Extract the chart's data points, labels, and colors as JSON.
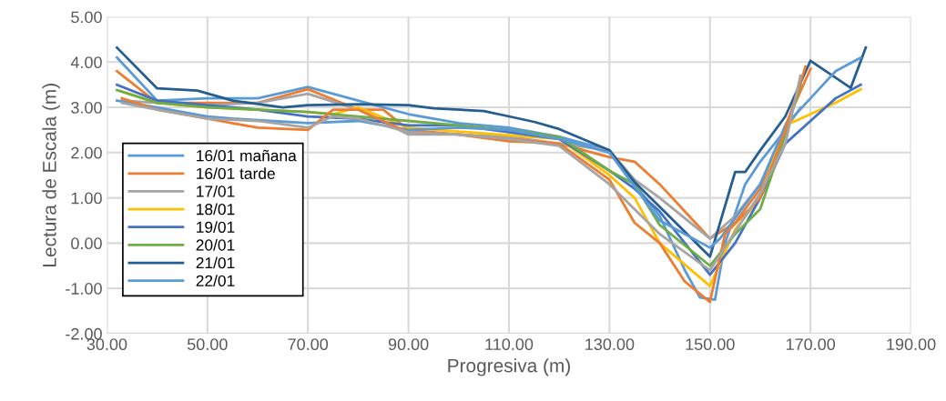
{
  "chart_data": {
    "type": "line",
    "xlabel": "Progresiva (m)",
    "ylabel": "Lectura de Escala (m)",
    "xlim": [
      30,
      190
    ],
    "xticks": [
      {
        "value": 30,
        "label": "30.00"
      },
      {
        "value": 50,
        "label": "50.00"
      },
      {
        "value": 70,
        "label": "70.00"
      },
      {
        "value": 90,
        "label": "90.00"
      },
      {
        "value": 110,
        "label": "110.00"
      },
      {
        "value": 130,
        "label": "130.00"
      },
      {
        "value": 150,
        "label": "150.00"
      },
      {
        "value": 170,
        "label": "170.00"
      },
      {
        "value": 190,
        "label": "190.00"
      }
    ],
    "ylim": [
      -2,
      5
    ],
    "yticks": [
      {
        "value": -2,
        "label": "-2.00"
      },
      {
        "value": -1,
        "label": "-1.00"
      },
      {
        "value": 0,
        "label": "0.00"
      },
      {
        "value": 1,
        "label": "1.00"
      },
      {
        "value": 2,
        "label": "2.00"
      },
      {
        "value": 3,
        "label": "3.00"
      },
      {
        "value": 4,
        "label": "4.00"
      },
      {
        "value": 5,
        "label": "5.00"
      }
    ],
    "grid": true,
    "legend": "left",
    "marker": "none",
    "line_style": "solid",
    "series": [
      {
        "name": "16/01 mañana",
        "color": "#5b9bd5",
        "x": [
          32,
          40,
          50,
          60,
          70,
          80,
          90,
          100,
          110,
          120,
          130,
          135,
          140,
          145,
          148,
          151,
          153,
          157,
          160,
          165,
          168
        ],
        "values": [
          4.1,
          3.15,
          3.2,
          3.2,
          3.45,
          3.15,
          2.85,
          2.65,
          2.55,
          2.35,
          2.05,
          1.3,
          0.6,
          -0.6,
          -1.2,
          -1.25,
          0.0,
          1.3,
          1.8,
          2.5,
          3.5
        ]
      },
      {
        "name": "16/01 tarde",
        "color": "#ed7d31",
        "x": [
          32,
          40,
          50,
          60,
          70,
          80,
          85,
          90,
          100,
          110,
          120,
          130,
          135,
          140,
          150,
          155,
          160,
          165,
          170
        ],
        "values": [
          3.8,
          3.1,
          3.1,
          3.1,
          3.4,
          2.95,
          2.95,
          2.5,
          2.4,
          2.25,
          2.2,
          1.9,
          1.8,
          1.3,
          0.1,
          0.45,
          1.2,
          2.6,
          3.85
        ]
      },
      {
        "name": "17/01",
        "color": "#a5a5a5",
        "x": [
          33,
          40,
          50,
          60,
          70,
          80,
          90,
          100,
          110,
          120,
          130,
          135,
          140,
          150,
          155,
          160,
          165,
          168
        ],
        "values": [
          3.15,
          3.1,
          3.05,
          3.1,
          3.3,
          2.95,
          2.4,
          2.4,
          2.35,
          2.2,
          2.05,
          1.4,
          1.0,
          0.1,
          0.6,
          1.3,
          2.5,
          3.0
        ]
      },
      {
        "name": "18/01",
        "color": "#ffc000",
        "x": [
          33,
          40,
          50,
          60,
          70,
          75,
          80,
          90,
          120,
          130,
          135,
          140,
          150,
          155,
          160,
          165,
          170,
          175,
          180
        ],
        "values": [
          3.35,
          3.1,
          3.0,
          2.95,
          2.9,
          2.85,
          3.0,
          2.55,
          2.3,
          1.5,
          1.0,
          0.0,
          -0.95,
          0.3,
          1.0,
          2.6,
          2.85,
          3.1,
          3.4
        ]
      },
      {
        "name": "19/01",
        "color": "#4472c4",
        "x": [
          32,
          40,
          50,
          60,
          70,
          80,
          90,
          100,
          110,
          120,
          130,
          135,
          140,
          150,
          155,
          160,
          165,
          170,
          175,
          180
        ],
        "values": [
          3.5,
          3.15,
          3.05,
          2.95,
          2.8,
          2.75,
          2.6,
          2.6,
          2.45,
          2.3,
          1.6,
          1.2,
          0.7,
          -0.7,
          0.0,
          1.0,
          2.2,
          2.7,
          3.2,
          3.5
        ]
      },
      {
        "name": "20/01",
        "color": "#70ad47",
        "x": [
          32,
          40,
          50,
          60,
          70,
          80,
          90,
          100,
          110,
          120,
          130,
          135,
          140,
          150,
          155,
          160,
          165,
          168
        ],
        "values": [
          3.38,
          3.1,
          3.0,
          2.95,
          2.9,
          2.8,
          2.7,
          2.6,
          2.5,
          2.35,
          1.6,
          1.3,
          0.4,
          -0.5,
          0.2,
          0.75,
          2.4,
          3.5
        ]
      },
      {
        "name": "21/01",
        "color": "#255e91",
        "x": [
          32,
          40,
          48,
          55,
          65,
          70,
          80,
          90,
          95,
          105,
          110,
          115,
          120,
          130,
          135,
          140,
          150,
          155,
          157,
          160,
          165,
          170,
          178,
          181
        ],
        "values": [
          4.32,
          3.42,
          3.37,
          3.15,
          3.0,
          3.05,
          3.07,
          3.05,
          2.98,
          2.92,
          2.8,
          2.68,
          2.52,
          2.05,
          1.35,
          0.8,
          -0.3,
          1.57,
          1.57,
          2.05,
          2.8,
          4.03,
          3.43,
          4.32
        ]
      },
      {
        "name": "22/01",
        "color": "#5b9bd5",
        "x": [
          32,
          40,
          50,
          55,
          70,
          80,
          90,
          100,
          110,
          120,
          130,
          140,
          150,
          152,
          160,
          165,
          170,
          175,
          180
        ],
        "values": [
          3.15,
          3.0,
          2.8,
          2.75,
          2.65,
          2.7,
          2.5,
          2.55,
          2.5,
          2.3,
          2.0,
          0.5,
          -0.1,
          0.1,
          1.3,
          2.6,
          3.2,
          3.8,
          4.1
        ]
      },
      {
        "color": "#ed7d31",
        "x": [
          33,
          40,
          50,
          60,
          70,
          75,
          80,
          90,
          100,
          110,
          120,
          130,
          135,
          140,
          145,
          150,
          153,
          160,
          165,
          169
        ],
        "values": [
          3.2,
          2.95,
          2.75,
          2.55,
          2.5,
          2.95,
          2.95,
          2.45,
          2.4,
          2.3,
          2.2,
          1.4,
          0.45,
          0.0,
          -0.85,
          -1.3,
          0.2,
          1.0,
          2.5,
          3.9
        ]
      },
      {
        "color": "#a5a5a5",
        "x": [
          33,
          40,
          50,
          60,
          70,
          75,
          80,
          90,
          100,
          110,
          120,
          130,
          140,
          150,
          160,
          165,
          168
        ],
        "values": [
          3.1,
          2.95,
          2.75,
          2.7,
          2.55,
          2.8,
          2.75,
          2.45,
          2.4,
          2.3,
          2.15,
          1.3,
          0.2,
          -0.6,
          1.1,
          2.2,
          3.7
        ]
      }
    ]
  }
}
